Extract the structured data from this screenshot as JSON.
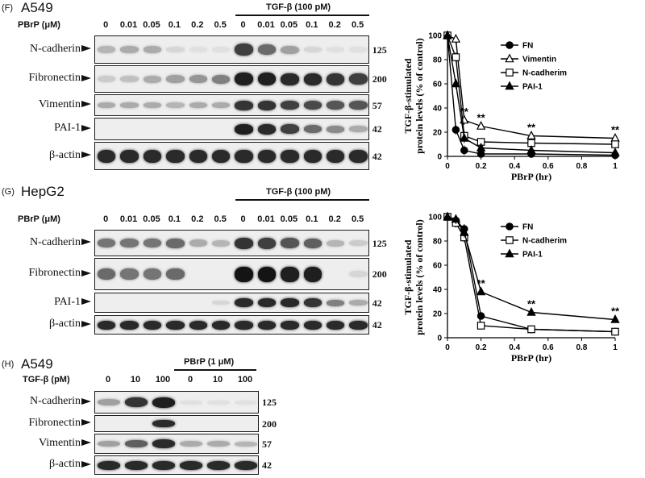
{
  "panelF": {
    "tag": "(F)",
    "cell": "A549",
    "treat": "TGF-β (100 pM)",
    "dose_label": "PBrP (μM)",
    "lanes": [
      "0",
      "0.01",
      "0.05",
      "0.1",
      "0.2",
      "0.5",
      "0",
      "0.01",
      "0.05",
      "0.1",
      "0.2",
      "0.5"
    ],
    "rows": [
      {
        "label": "N-cadherin",
        "kda": "125",
        "bands": [
          0.25,
          0.3,
          0.3,
          0.1,
          0.05,
          0.05,
          0.8,
          0.6,
          0.35,
          0.1,
          0.05,
          0.05
        ]
      },
      {
        "label": "Fibronectin",
        "kda": "200",
        "bands": [
          0.15,
          0.2,
          0.3,
          0.35,
          0.4,
          0.5,
          0.95,
          0.95,
          0.9,
          0.9,
          0.85,
          0.8
        ]
      },
      {
        "label": "Vimentin",
        "kda": "57",
        "bands": [
          0.3,
          0.3,
          0.3,
          0.25,
          0.3,
          0.3,
          0.85,
          0.85,
          0.8,
          0.75,
          0.7,
          0.7
        ]
      },
      {
        "label": "PAI-1",
        "kda": "42",
        "bands": [
          0,
          0,
          0,
          0,
          0,
          0,
          0.95,
          0.9,
          0.8,
          0.6,
          0.45,
          0.3
        ]
      },
      {
        "label": "β-actin",
        "kda": "42",
        "bands": [
          0.9,
          0.9,
          0.9,
          0.9,
          0.9,
          0.9,
          0.9,
          0.9,
          0.9,
          0.9,
          0.9,
          0.9
        ]
      }
    ]
  },
  "panelG": {
    "tag": "(G)",
    "cell": "HepG2",
    "treat": "TGF-β (100 pM)",
    "dose_label": "PBrP (μM)",
    "lanes": [
      "0",
      "0.01",
      "0.05",
      "0.1",
      "0.2",
      "0.5",
      "0",
      "0.01",
      "0.05",
      "0.1",
      "0.2",
      "0.5"
    ],
    "rows": [
      {
        "label": "N-cadherin",
        "kda": "125",
        "bands": [
          0.55,
          0.55,
          0.55,
          0.6,
          0.3,
          0.25,
          0.85,
          0.8,
          0.7,
          0.65,
          0.25,
          0.15
        ]
      },
      {
        "label": "Fibronectin",
        "kda": "200",
        "bands": [
          0.6,
          0.55,
          0.55,
          0.6,
          0,
          0,
          1,
          1,
          0.95,
          0.95,
          0,
          0.1
        ]
      },
      {
        "label": "PAI-1",
        "kda": "42",
        "bands": [
          0,
          0,
          0,
          0,
          0,
          0.1,
          0.9,
          0.9,
          0.9,
          0.85,
          0.5,
          0.3
        ]
      },
      {
        "label": "β-actin",
        "kda": "42",
        "bands": [
          0.9,
          0.9,
          0.9,
          0.9,
          0.9,
          0.9,
          0.9,
          0.9,
          0.9,
          0.9,
          0.9,
          0.9
        ]
      }
    ]
  },
  "panelH": {
    "cell": "A549",
    "treat": "PBrP (1 μM)",
    "dose_label": "TGF-β (pM)",
    "lanes": [
      "0",
      "10",
      "100",
      "0",
      "10",
      "100"
    ],
    "rows": [
      {
        "label": "N-cadherin",
        "kda": "125",
        "bands": [
          0.35,
          0.85,
          0.95,
          0.05,
          0.05,
          0.05
        ]
      },
      {
        "label": "Fibronectin",
        "kda": "200",
        "bands": [
          0,
          0,
          0.9,
          0,
          0,
          0
        ]
      },
      {
        "label": "Vimentin",
        "kda": "57",
        "bands": [
          0.35,
          0.65,
          0.9,
          0.3,
          0.3,
          0.25
        ]
      },
      {
        "label": "β-actin",
        "kda": "42",
        "bands": [
          0.9,
          0.9,
          0.9,
          0.9,
          0.9,
          0.9
        ]
      }
    ]
  },
  "chart_data": [
    {
      "type": "line",
      "title": "",
      "xlabel": "PBrP (hr)",
      "ylabel": "TGF-β-stimulated protein levels (% of control)",
      "xlim": [
        0,
        1
      ],
      "ylim": [
        0,
        100
      ],
      "xticks": [
        "0",
        "0.2",
        "0.4",
        "0.6",
        "0.8",
        "1"
      ],
      "yticks": [
        "0",
        "20",
        "40",
        "60",
        "80",
        "100"
      ],
      "x": [
        0,
        0.05,
        0.1,
        0.2,
        0.5,
        1
      ],
      "series": [
        {
          "name": "FN",
          "marker": "circle-filled",
          "values": [
            100,
            22,
            5,
            2,
            2,
            1
          ]
        },
        {
          "name": "Vimentin",
          "marker": "triangle-open",
          "values": [
            100,
            97,
            30,
            25,
            17,
            15
          ]
        },
        {
          "name": "N-cadherim",
          "marker": "square-open",
          "values": [
            100,
            82,
            17,
            12,
            11,
            10
          ]
        },
        {
          "name": "PAI-1",
          "marker": "triangle-filled",
          "values": [
            100,
            60,
            15,
            7,
            5,
            3
          ]
        }
      ],
      "annotations": [
        {
          "x": 0.1,
          "text": "**"
        },
        {
          "x": 0.2,
          "text": "**"
        },
        {
          "x": 0.5,
          "text": "**"
        },
        {
          "x": 1,
          "text": "**"
        }
      ],
      "legend": "right"
    },
    {
      "type": "line",
      "title": "",
      "xlabel": "PBrP (hr)",
      "ylabel": "TGF-β-stimulated protein levels (% of control)",
      "xlim": [
        0,
        1
      ],
      "ylim": [
        0,
        100
      ],
      "xticks": [
        "0",
        "0.2",
        "0.4",
        "0.6",
        "0.8",
        "1"
      ],
      "yticks": [
        "0",
        "20",
        "40",
        "60",
        "80",
        "100"
      ],
      "x": [
        0,
        0.05,
        0.1,
        0.2,
        0.5,
        1
      ],
      "series": [
        {
          "name": "FN",
          "marker": "circle-filled",
          "values": [
            100,
            97,
            90,
            18,
            7,
            5
          ]
        },
        {
          "name": "N-cadherim",
          "marker": "square-open",
          "values": [
            100,
            95,
            83,
            10,
            7,
            5
          ]
        },
        {
          "name": "PAI-1",
          "marker": "triangle-filled",
          "values": [
            100,
            98,
            87,
            38,
            21,
            15
          ]
        }
      ],
      "annotations": [
        {
          "x": 0.2,
          "text": "**"
        },
        {
          "x": 0.5,
          "text": "**"
        },
        {
          "x": 1,
          "text": "**"
        }
      ],
      "legend": "right"
    }
  ]
}
